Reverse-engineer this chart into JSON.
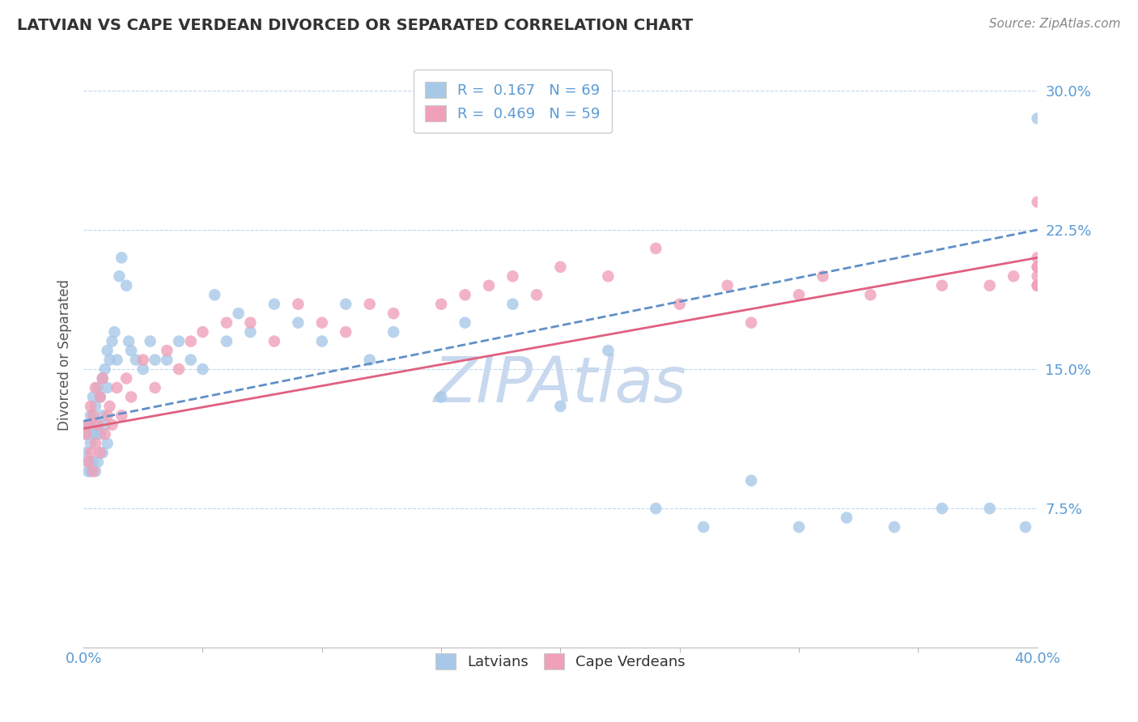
{
  "title": "LATVIAN VS CAPE VERDEAN DIVORCED OR SEPARATED CORRELATION CHART",
  "source_text": "Source: ZipAtlas.com",
  "ylabel": "Divorced or Separated",
  "yticks": [
    "7.5%",
    "15.0%",
    "22.5%",
    "30.0%"
  ],
  "ytick_values": [
    0.075,
    0.15,
    0.225,
    0.3
  ],
  "xlim": [
    0.0,
    0.4
  ],
  "ylim": [
    0.0,
    0.315
  ],
  "latvian_color": "#a8c8e8",
  "cape_verdean_color": "#f0a0b8",
  "latvian_line_color": "#6090c8",
  "cape_verdean_line_color": "#e06080",
  "latvian_R": 0.167,
  "latvian_N": 69,
  "cape_verdean_R": 0.469,
  "cape_verdean_N": 59,
  "watermark": "ZIPAtlas",
  "watermark_color": "#c8d8ee",
  "legend_label_latvians": "Latvians",
  "legend_label_cape_verdeans": "Cape Verdeans",
  "latvian_x": [
    0.001,
    0.001,
    0.002,
    0.002,
    0.002,
    0.003,
    0.003,
    0.003,
    0.004,
    0.004,
    0.004,
    0.005,
    0.005,
    0.005,
    0.006,
    0.006,
    0.006,
    0.007,
    0.007,
    0.008,
    0.008,
    0.008,
    0.009,
    0.009,
    0.01,
    0.01,
    0.01,
    0.011,
    0.012,
    0.013,
    0.014,
    0.015,
    0.016,
    0.018,
    0.019,
    0.02,
    0.022,
    0.025,
    0.028,
    0.03,
    0.035,
    0.04,
    0.045,
    0.05,
    0.055,
    0.06,
    0.065,
    0.07,
    0.08,
    0.09,
    0.1,
    0.11,
    0.12,
    0.13,
    0.15,
    0.16,
    0.18,
    0.2,
    0.22,
    0.24,
    0.26,
    0.28,
    0.3,
    0.32,
    0.34,
    0.36,
    0.38,
    0.395,
    0.4
  ],
  "latvian_y": [
    0.115,
    0.105,
    0.12,
    0.1,
    0.095,
    0.125,
    0.11,
    0.095,
    0.135,
    0.115,
    0.1,
    0.13,
    0.115,
    0.095,
    0.14,
    0.12,
    0.1,
    0.135,
    0.115,
    0.145,
    0.125,
    0.105,
    0.15,
    0.12,
    0.16,
    0.14,
    0.11,
    0.155,
    0.165,
    0.17,
    0.155,
    0.2,
    0.21,
    0.195,
    0.165,
    0.16,
    0.155,
    0.15,
    0.165,
    0.155,
    0.155,
    0.165,
    0.155,
    0.15,
    0.19,
    0.165,
    0.18,
    0.17,
    0.185,
    0.175,
    0.165,
    0.185,
    0.155,
    0.17,
    0.135,
    0.175,
    0.185,
    0.13,
    0.16,
    0.075,
    0.065,
    0.09,
    0.065,
    0.07,
    0.065,
    0.075,
    0.075,
    0.065,
    0.285
  ],
  "cape_verdean_x": [
    0.001,
    0.002,
    0.002,
    0.003,
    0.003,
    0.004,
    0.004,
    0.005,
    0.005,
    0.006,
    0.007,
    0.007,
    0.008,
    0.009,
    0.01,
    0.011,
    0.012,
    0.014,
    0.016,
    0.018,
    0.02,
    0.025,
    0.03,
    0.035,
    0.04,
    0.045,
    0.05,
    0.06,
    0.07,
    0.08,
    0.09,
    0.1,
    0.11,
    0.12,
    0.13,
    0.15,
    0.16,
    0.17,
    0.18,
    0.19,
    0.2,
    0.22,
    0.24,
    0.25,
    0.27,
    0.28,
    0.3,
    0.31,
    0.33,
    0.36,
    0.38,
    0.39,
    0.4,
    0.4,
    0.4,
    0.4,
    0.4,
    0.4,
    0.4
  ],
  "cape_verdean_y": [
    0.115,
    0.12,
    0.1,
    0.13,
    0.105,
    0.125,
    0.095,
    0.14,
    0.11,
    0.12,
    0.135,
    0.105,
    0.145,
    0.115,
    0.125,
    0.13,
    0.12,
    0.14,
    0.125,
    0.145,
    0.135,
    0.155,
    0.14,
    0.16,
    0.15,
    0.165,
    0.17,
    0.175,
    0.175,
    0.165,
    0.185,
    0.175,
    0.17,
    0.185,
    0.18,
    0.185,
    0.19,
    0.195,
    0.2,
    0.19,
    0.205,
    0.2,
    0.215,
    0.185,
    0.195,
    0.175,
    0.19,
    0.2,
    0.19,
    0.195,
    0.195,
    0.2,
    0.205,
    0.195,
    0.21,
    0.2,
    0.205,
    0.195,
    0.24
  ],
  "trend_x_start": 0.0,
  "trend_x_end": 0.4,
  "lv_trend_y_start": 0.122,
  "lv_trend_y_end": 0.225,
  "cv_trend_y_start": 0.118,
  "cv_trend_y_end": 0.21
}
